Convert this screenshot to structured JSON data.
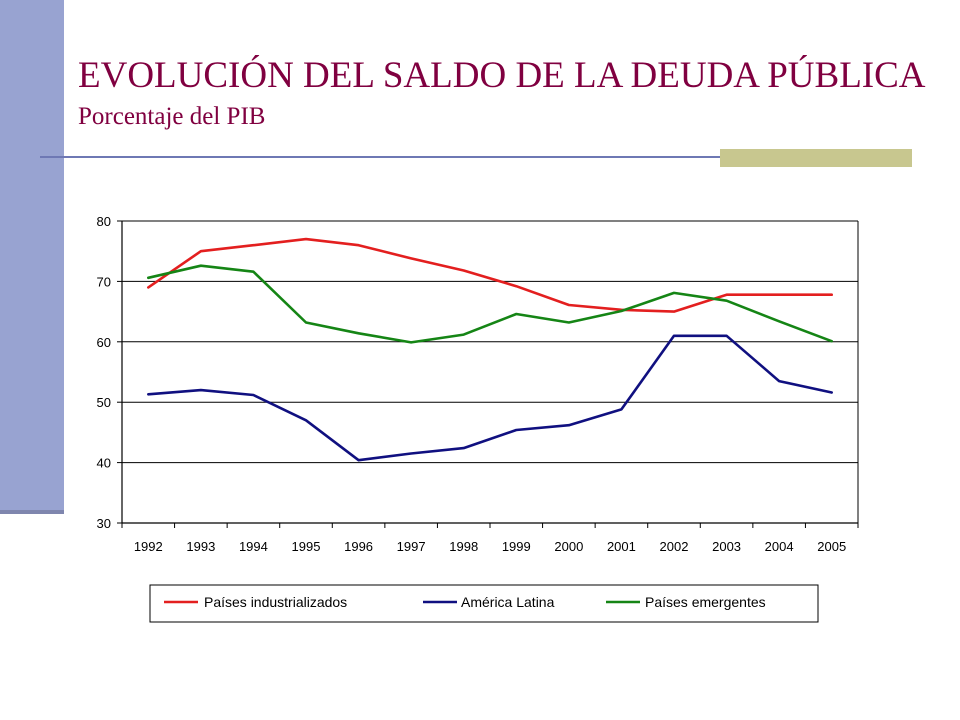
{
  "slide": {
    "title": "EVOLUCIÓN DEL SALDO DE LA DEUDA PÚBLICA",
    "subtitle": "Porcentaje del PIB",
    "colors": {
      "title": "#800040",
      "side_bar": "#98A3D1",
      "rule": "#6E78B4",
      "rule_accent": "#C8C78F"
    }
  },
  "chart_data": {
    "type": "line",
    "x": [
      "1992",
      "1993",
      "1994",
      "1995",
      "1996",
      "1997",
      "1998",
      "1999",
      "2000",
      "2001",
      "2002",
      "2003",
      "2004",
      "2005"
    ],
    "ylim": [
      30,
      80
    ],
    "yticks": [
      30,
      40,
      50,
      60,
      70,
      80
    ],
    "grid": true,
    "legend_position": "bottom",
    "series": [
      {
        "name": "Países industrializados",
        "color": "#E31F1F",
        "values": [
          69,
          75,
          76,
          77,
          76,
          73.8,
          71.8,
          69.2,
          66.1,
          65.3,
          65,
          67.8,
          67.8,
          67.8
        ]
      },
      {
        "name": "América Latina",
        "color": "#101080",
        "values": [
          51.3,
          52,
          51.2,
          47,
          40.4,
          41.5,
          42.4,
          45.4,
          46.2,
          48.8,
          61,
          61,
          53.5,
          51.6
        ]
      },
      {
        "name": "Países emergentes",
        "color": "#158515",
        "values": [
          70.6,
          72.6,
          71.6,
          63.2,
          61.4,
          59.9,
          61.2,
          64.6,
          63.2,
          65.1,
          68.1,
          66.8,
          63.4,
          60.1
        ]
      }
    ]
  }
}
